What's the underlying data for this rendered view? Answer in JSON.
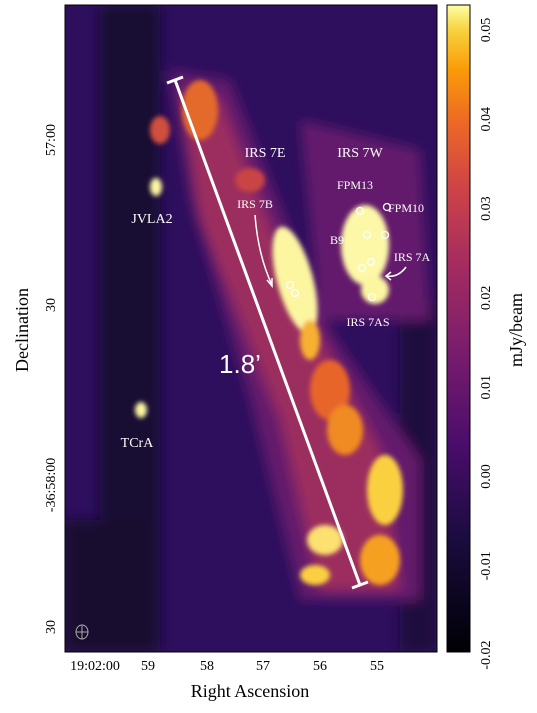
{
  "x_axis": {
    "label": "Right Ascension",
    "ticks": [
      "19:02:00",
      "59",
      "58",
      "57",
      "56",
      "55"
    ]
  },
  "y_axis": {
    "label": "Declination",
    "ticks": [
      "57:00",
      "30",
      "-36:58:00",
      "30"
    ]
  },
  "colorbar": {
    "label": "mJy/beam",
    "ticks": [
      "0.05",
      "0.04",
      "0.03",
      "0.02",
      "0.01",
      "0.00",
      "-0.01",
      "-0.02"
    ]
  },
  "annotations": {
    "irs7e": "IRS 7E",
    "irs7w": "IRS 7W",
    "fpm13": "FPM13",
    "fpm10": "FPM10",
    "irs7b": "IRS 7B",
    "b9": "B9",
    "irs7a": "IRS 7A",
    "irs7as": "IRS 7AS",
    "jvla2": "JVLA2",
    "tcra": "TCrA",
    "scale": "1.8’"
  }
}
